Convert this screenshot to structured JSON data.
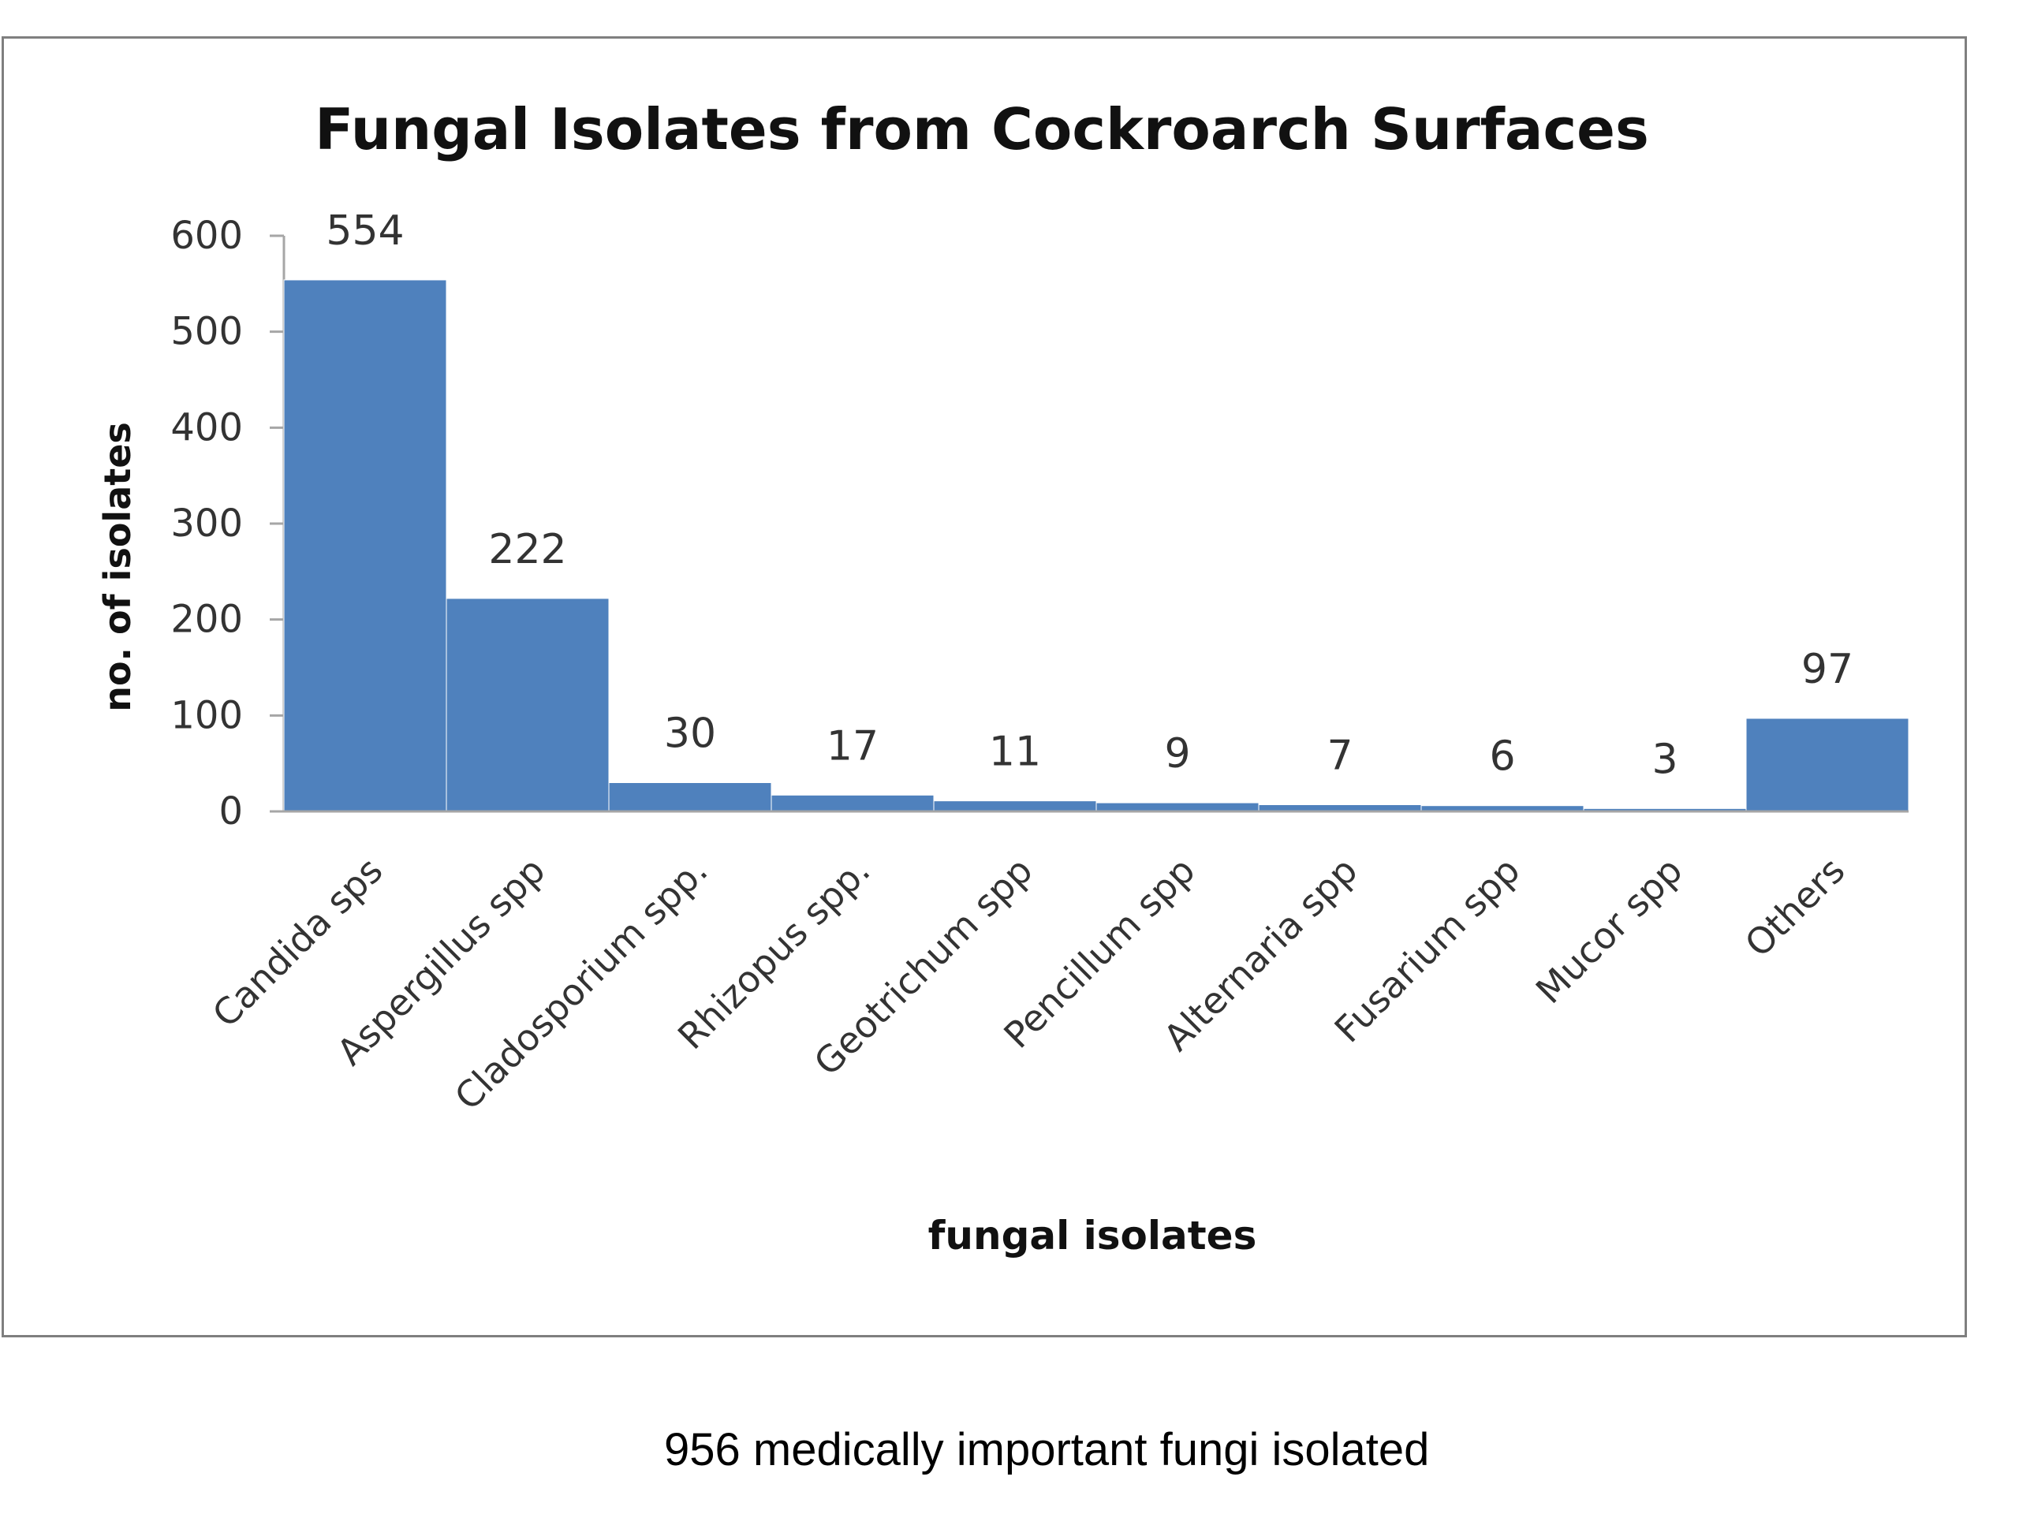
{
  "chart_data": {
    "type": "bar",
    "title": "Fungal Isolates from Cockroarch Surfaces",
    "xlabel": "fungal isolates",
    "ylabel": "no. of isolates",
    "categories": [
      "Candida sps",
      "Aspergillus spp",
      "Cladosporium spp.",
      "Rhizopus spp.",
      "Geotrichum spp",
      "Pencillum spp",
      "Alternaria spp",
      "Fusarium spp",
      "Mucor spp",
      "Others"
    ],
    "values": [
      554,
      222,
      30,
      17,
      11,
      9,
      7,
      6,
      3,
      97
    ],
    "data_labels": [
      "554",
      "222",
      "30",
      "17",
      "11",
      "9",
      "7",
      "6",
      "3",
      "97"
    ],
    "yticks": [
      "0",
      "100",
      "200",
      "300",
      "400",
      "500",
      "600"
    ],
    "ylim": [
      0,
      600
    ],
    "bar_color": "#4f81bd",
    "grid": false,
    "legend": "none"
  },
  "caption": "956 medically important  fungi isolated"
}
